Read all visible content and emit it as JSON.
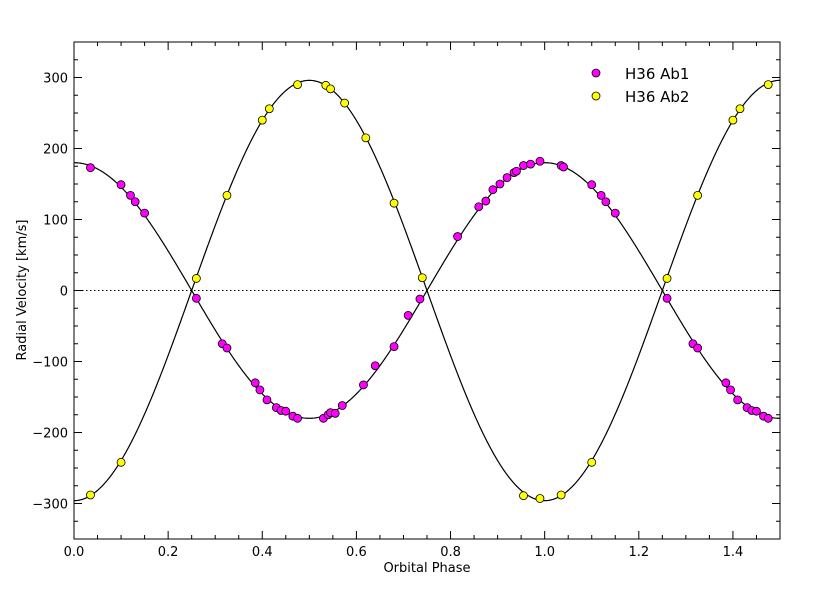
{
  "chart_data": {
    "type": "scatter",
    "title": "",
    "xlabel": "Orbital Phase",
    "ylabel": "Radial Velocity [km/s]",
    "xlim": [
      0.0,
      1.5
    ],
    "ylim": [
      -350,
      350
    ],
    "xticks": [
      "0.0",
      "0.2",
      "0.4",
      "0.6",
      "0.8",
      "1.0",
      "1.2",
      "1.4"
    ],
    "yticks": [
      "−300",
      "−200",
      "−100",
      "0",
      "100",
      "200",
      "300"
    ],
    "grid": false,
    "zero_line": "dotted",
    "legend_position": "top-right",
    "series": [
      {
        "name": "H36 Ab1",
        "color": "#ff00ff",
        "marker": "circle",
        "x": [
          0.035,
          0.1,
          0.12,
          0.13,
          0.15,
          0.26,
          0.315,
          0.325,
          0.385,
          0.395,
          0.41,
          0.43,
          0.44,
          0.45,
          0.465,
          0.475,
          0.53,
          0.54,
          0.545,
          0.555,
          0.57,
          0.615,
          0.64,
          0.68,
          0.71,
          0.735,
          0.815,
          0.86,
          0.875,
          0.89,
          0.905,
          0.92,
          0.935,
          0.94,
          0.955,
          0.97,
          0.99,
          1.035,
          1.04,
          1.1,
          1.12,
          1.13,
          1.15,
          1.26,
          1.315,
          1.325,
          1.385,
          1.395,
          1.41,
          1.43,
          1.44,
          1.45,
          1.465,
          1.475
        ],
        "y": [
          173,
          149,
          134,
          125,
          109,
          -11,
          -75,
          -81,
          -130,
          -140,
          -154,
          -165,
          -169,
          -170,
          -177,
          -180,
          -180,
          -175,
          -172,
          -173,
          -162,
          -133,
          -106,
          -79,
          -35,
          -12,
          76,
          118,
          126,
          142,
          150,
          159,
          166,
          168,
          176,
          178,
          182,
          176,
          174,
          149,
          134,
          125,
          109,
          -11,
          -75,
          -81,
          -130,
          -140,
          -154,
          -165,
          -169,
          -170,
          -177,
          -180
        ]
      },
      {
        "name": "H36 Ab2",
        "color": "#ffff00",
        "marker": "circle",
        "x": [
          0.035,
          0.1,
          0.26,
          0.325,
          0.4,
          0.415,
          0.475,
          0.535,
          0.545,
          0.575,
          0.62,
          0.68,
          0.74,
          0.955,
          0.99,
          1.035,
          1.1,
          1.26,
          1.325,
          1.4,
          1.415,
          1.475
        ],
        "y": [
          -288,
          -242,
          17,
          134,
          240,
          256,
          290,
          289,
          284,
          264,
          215,
          123,
          18,
          -289,
          -293,
          -288,
          -242,
          17,
          134,
          240,
          256,
          290
        ]
      }
    ],
    "model_curves": [
      {
        "series": "H36 Ab1",
        "gamma": 0,
        "K": 180,
        "phase_of_max": 0.0,
        "color": "#000000"
      },
      {
        "series": "H36 Ab2",
        "gamma": 0,
        "K": -296,
        "phase_of_max": 0.0,
        "color": "#000000"
      }
    ]
  }
}
